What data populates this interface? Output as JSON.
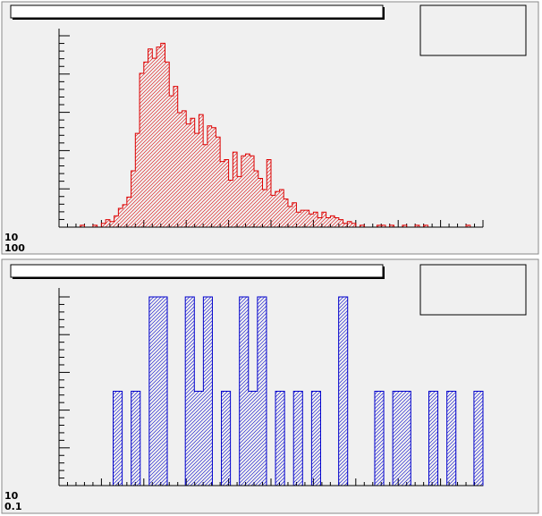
{
  "colors": {
    "pad_background": "#f0f0f0",
    "upper_histogram": "#dd0000",
    "lower_histogram": "#0000cc",
    "axis": "#000000"
  },
  "chart_data": [
    {
      "type": "bar",
      "histogram_style": "step-filled-hatched",
      "color": "#dd0000",
      "title": "",
      "xlabel": "",
      "ylabel": "",
      "grid": false,
      "nbins": 100,
      "values": [
        0,
        0,
        0,
        0,
        0,
        1,
        0,
        0,
        1,
        0,
        2,
        4,
        3,
        6,
        10,
        12,
        16,
        30,
        50,
        82,
        88,
        95,
        90,
        96,
        98,
        88,
        70,
        75,
        61,
        62,
        55,
        58,
        50,
        60,
        44,
        54,
        53,
        48,
        35,
        36,
        25,
        40,
        27,
        38,
        39,
        38,
        30,
        26,
        20,
        36,
        17,
        19,
        20,
        15,
        11,
        13,
        8,
        9,
        9,
        7,
        8,
        5,
        8,
        5,
        6,
        5,
        4,
        2,
        3,
        2,
        0,
        1,
        0,
        0,
        0,
        1,
        1,
        0,
        1,
        0,
        0,
        1,
        0,
        0,
        1,
        0,
        1,
        0,
        0,
        0,
        0,
        0,
        0,
        0,
        0,
        0,
        1,
        0,
        0,
        0
      ],
      "ylim": [
        0,
        102
      ],
      "tick_labels": [
        "10",
        "100"
      ]
    },
    {
      "type": "bar",
      "histogram_style": "step-filled-hatched",
      "color": "#0000cc",
      "title": "",
      "xlabel": "",
      "ylabel": "",
      "grid": false,
      "nbins": 47,
      "values": [
        0,
        0,
        0,
        0,
        0,
        0,
        1,
        0,
        1,
        0,
        2,
        2,
        0,
        0,
        2,
        1,
        2,
        0,
        1,
        0,
        2,
        1,
        2,
        0,
        1,
        0,
        1,
        0,
        1,
        0,
        0,
        2,
        0,
        0,
        0,
        1,
        0,
        1,
        1,
        0,
        0,
        1,
        0,
        1,
        0,
        0,
        1
      ],
      "ylim": [
        0,
        2
      ],
      "tick_labels": [
        "10",
        "0.1"
      ]
    }
  ]
}
